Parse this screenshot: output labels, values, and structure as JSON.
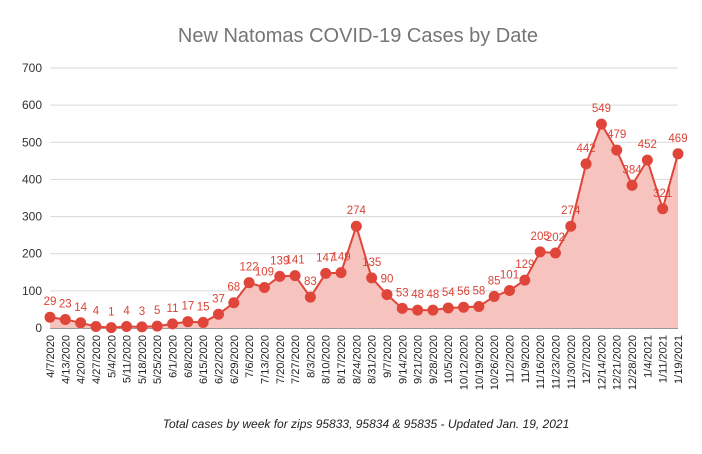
{
  "chart_data": {
    "type": "area",
    "title": "New Natomas COVID-19 Cases by Date",
    "caption": "Total cases by week for zips 95833, 95834 & 95835 - Updated Jan. 19, 2021",
    "xlabel": "",
    "ylabel": "",
    "ylim": [
      0,
      700
    ],
    "yticks": [
      "0",
      "100",
      "200",
      "300",
      "400",
      "500",
      "600",
      "700"
    ],
    "grid": true,
    "legend": "none",
    "colors": {
      "line": "#e0453a",
      "fill": "#f6c3bf",
      "label": "#db4437",
      "grid": "#d9d9d9",
      "title": "#757575"
    },
    "categories": [
      "4/7/2020",
      "4/13/2020",
      "4/20/2020",
      "4/27/2020",
      "5/4/2020",
      "5/11/2020",
      "5/18/2020",
      "5/25/2020",
      "6/1/2020",
      "6/8/2020",
      "6/15/2020",
      "6/22/2020",
      "6/29/2020",
      "7/6/2020",
      "7/13/2020",
      "7/20/2020",
      "7/27/2020",
      "8/3/2020",
      "8/10/2020",
      "8/17/2020",
      "8/24/2020",
      "8/31/2020",
      "9/7/2020",
      "9/14/2020",
      "9/21/2020",
      "9/28/2020",
      "10/5/2020",
      "10/12/2020",
      "10/19/2020",
      "10/26/2020",
      "11/2/2020",
      "11/9/2020",
      "11/16/2020",
      "11/23/2020",
      "11/30/2020",
      "12/7/2020",
      "12/14/2020",
      "12/21/2020",
      "12/28/2020",
      "1/4/2021",
      "1/11/2021",
      "1/19/2021"
    ],
    "values": [
      29,
      23,
      14,
      4,
      1,
      4,
      3,
      5,
      11,
      17,
      15,
      37,
      68,
      122,
      109,
      139,
      141,
      83,
      147,
      149,
      274,
      135,
      90,
      53,
      48,
      48,
      54,
      56,
      58,
      85,
      101,
      129,
      205,
      202,
      274,
      442,
      549,
      479,
      384,
      452,
      321,
      469
    ],
    "data_labels": [
      "29",
      "23",
      "14",
      "4",
      "1",
      "4",
      "3",
      "5",
      "11",
      "17",
      "15",
      "37",
      "68",
      "122",
      "109",
      "139",
      "141",
      "83",
      "147",
      "149",
      "274",
      "135",
      "90",
      "53",
      "48",
      "48",
      "54",
      "56",
      "58",
      "85",
      "101",
      "129",
      "205",
      "202",
      "274",
      "442",
      "549",
      "479",
      "384",
      "452",
      "321",
      "469"
    ]
  }
}
